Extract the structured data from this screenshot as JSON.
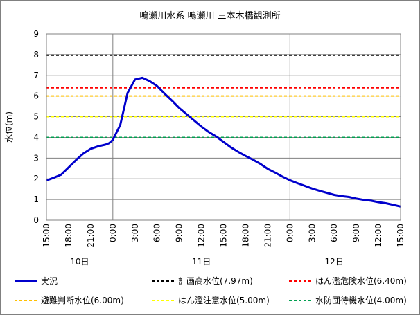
{
  "chart_data": {
    "type": "line",
    "title": "鳴瀬川水系 鳴瀬川 三本木橋観測所",
    "ylabel": "水位(m)",
    "xlabel": "",
    "ylim": [
      0,
      9
    ],
    "yticks": [
      "0",
      "1",
      "2",
      "3",
      "4",
      "5",
      "6",
      "7",
      "8",
      "9"
    ],
    "xticks": [
      "15:00",
      "18:00",
      "21:00",
      "0:00",
      "3:00",
      "6:00",
      "9:00",
      "12:00",
      "15:00",
      "18:00",
      "21:00",
      "0:00",
      "3:00",
      "6:00",
      "9:00",
      "12:00",
      "15:00"
    ],
    "x_range_hours": [
      0,
      48
    ],
    "day_labels": [
      {
        "label": "10日",
        "hour": 4.5
      },
      {
        "label": "11日",
        "hour": 21
      },
      {
        "label": "12日",
        "hour": 39
      }
    ],
    "day_separators_hours": [
      9,
      33
    ],
    "series": [
      {
        "name": "実況",
        "color": "#0000cc",
        "points": [
          [
            0,
            1.92
          ],
          [
            1,
            2.05
          ],
          [
            2,
            2.2
          ],
          [
            3,
            2.55
          ],
          [
            4,
            2.9
          ],
          [
            5,
            3.22
          ],
          [
            6,
            3.45
          ],
          [
            7,
            3.57
          ],
          [
            8,
            3.65
          ],
          [
            8.5,
            3.72
          ],
          [
            9,
            3.88
          ],
          [
            10,
            4.6
          ],
          [
            11,
            6.15
          ],
          [
            12,
            6.8
          ],
          [
            13,
            6.88
          ],
          [
            14,
            6.72
          ],
          [
            15,
            6.48
          ],
          [
            16,
            6.12
          ],
          [
            17,
            5.78
          ],
          [
            18,
            5.42
          ],
          [
            19,
            5.12
          ],
          [
            20,
            4.82
          ],
          [
            21,
            4.52
          ],
          [
            22,
            4.26
          ],
          [
            23,
            4.04
          ],
          [
            24,
            3.78
          ],
          [
            25,
            3.52
          ],
          [
            26,
            3.3
          ],
          [
            27,
            3.1
          ],
          [
            28,
            2.92
          ],
          [
            29,
            2.72
          ],
          [
            30,
            2.48
          ],
          [
            31,
            2.3
          ],
          [
            32,
            2.1
          ],
          [
            33,
            1.93
          ],
          [
            34,
            1.79
          ],
          [
            35,
            1.66
          ],
          [
            36,
            1.53
          ],
          [
            37,
            1.42
          ],
          [
            38,
            1.32
          ],
          [
            39,
            1.22
          ],
          [
            40,
            1.16
          ],
          [
            41,
            1.12
          ],
          [
            42,
            1.04
          ],
          [
            43,
            0.98
          ],
          [
            44,
            0.94
          ],
          [
            45,
            0.87
          ],
          [
            46,
            0.82
          ],
          [
            47,
            0.74
          ],
          [
            48,
            0.66
          ]
        ]
      }
    ],
    "thresholds": [
      {
        "name": "計画高水位(7.97m)",
        "value": 7.97,
        "color": "#000000"
      },
      {
        "name": "はん濫危険水位(6.40m)",
        "value": 6.4,
        "color": "#ff0000"
      },
      {
        "name": "避難判断水位(6.00m)",
        "value": 6.0,
        "color": "#ffc000"
      },
      {
        "name": "はん濫注意水位(5.00m)",
        "value": 5.0,
        "color": "#ffff00"
      },
      {
        "name": "水防団待機水位(4.00m)",
        "value": 4.0,
        "color": "#00a050"
      }
    ],
    "grid": true,
    "legend_position": "bottom"
  }
}
